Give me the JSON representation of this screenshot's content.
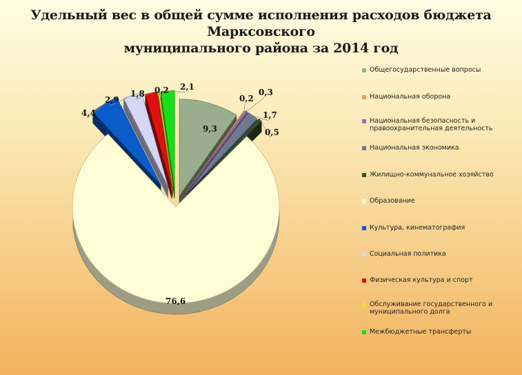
{
  "header": {
    "title_line1": "Удельный вес в общей сумме исполнения расходов бюджета Марксовского",
    "title_line2": "муниципального района за 2014 год"
  },
  "chart_data": {
    "type": "pie",
    "style": "3d-exploded",
    "legend_position": "right",
    "series": [
      {
        "name": "Общегосударственные вопросы",
        "value": 9.3,
        "color": "#9aae8f"
      },
      {
        "name": "Национальная оборона",
        "value": 0.2,
        "color": "#e0a35e"
      },
      {
        "name": "Национальная безопасность и правоохранительная деятельность",
        "value": 0.3,
        "color": "#9e6cc0"
      },
      {
        "name": "Национальная экономика",
        "value": 1.7,
        "color": "#6f7a8e"
      },
      {
        "name": "Жилищно-коммунальное хозяйство",
        "value": 0.5,
        "color": "#3a4e2e"
      },
      {
        "name": "Образование",
        "value": 76.6,
        "color": "#fefdd5"
      },
      {
        "name": "Культура, кинематография",
        "value": 4.4,
        "color": "#0a5cc8"
      },
      {
        "name": "Социальная политика",
        "value": 2.9,
        "color": "#d6d6f5"
      },
      {
        "name": "Физическая культура и спорт",
        "value": 1.8,
        "color": "#e01010"
      },
      {
        "name": "Обслуживание государственного и муниципального долга",
        "value": 0.2,
        "color": "#f0e020"
      },
      {
        "name": "Межбюджетные трансферты",
        "value": 2.1,
        "color": "#18e018"
      }
    ],
    "data_labels": [
      "9,3",
      "0,2",
      "0,3",
      "1,7",
      "0,5",
      "76,6",
      "4,4",
      "2,9",
      "1,8",
      "0,2",
      "2,1"
    ]
  }
}
